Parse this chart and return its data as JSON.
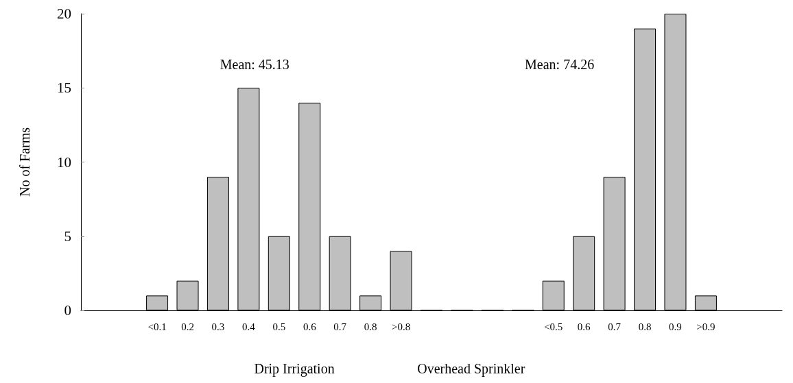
{
  "chart_data": {
    "type": "bar",
    "ylabel": "No of Farms",
    "categories": [
      null,
      null,
      "<0.1",
      "0.2",
      "0.3",
      "0.4",
      "0.5",
      "0.6",
      "0.7",
      "0.8",
      ">0.8",
      null,
      null,
      null,
      null,
      "<0.5",
      "0.6",
      "0.7",
      "0.8",
      "0.9",
      ">0.9",
      null,
      null
    ],
    "values": [
      null,
      null,
      1,
      2,
      9,
      15,
      5,
      14,
      5,
      1,
      4,
      0,
      0,
      0,
      0,
      2,
      5,
      9,
      19,
      20,
      1,
      null,
      null
    ],
    "color": "#bfbfbf",
    "ylim": [
      0,
      20
    ],
    "yticks": [
      0,
      5,
      10,
      15,
      20
    ],
    "annotations": [
      "Mean: 45.13",
      "Mean: 74.26",
      "Drip Irrigation",
      "Overhead Sprinkler"
    ]
  }
}
